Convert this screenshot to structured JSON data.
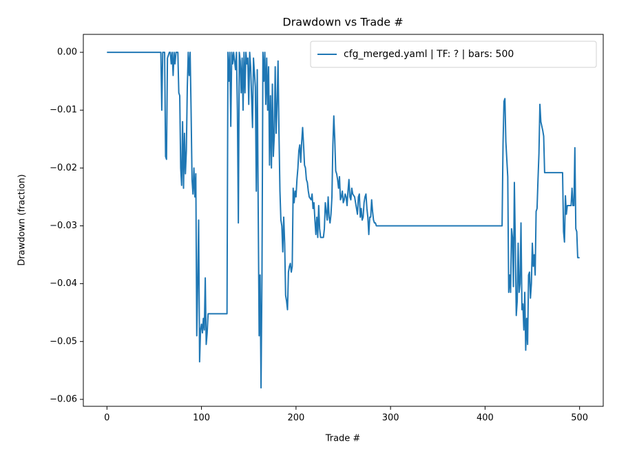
{
  "chart_data": {
    "type": "line",
    "title": "Drawdown vs Trade #",
    "x_label": "Trade #",
    "y_label": "Drawdown (fraction)",
    "xlim": [
      -25,
      525
    ],
    "ylim": [
      -0.0612,
      0.0031
    ],
    "xticks": [
      0,
      100,
      200,
      300,
      400,
      500
    ],
    "yticks": [
      {
        "value": 0,
        "label": "0.00"
      },
      {
        "value": -0.01,
        "label": "−0.01"
      },
      {
        "value": -0.02,
        "label": "−0.02"
      },
      {
        "value": -0.03,
        "label": "−0.03"
      },
      {
        "value": -0.04,
        "label": "−0.04"
      },
      {
        "value": -0.05,
        "label": "−0.05"
      },
      {
        "value": -0.06,
        "label": "−0.06"
      }
    ],
    "grid": false,
    "legend": "upper right",
    "x": [
      0,
      57,
      58,
      59,
      61,
      62,
      63,
      64,
      66,
      67,
      68,
      69,
      70,
      71,
      72,
      73,
      75,
      76,
      77,
      78,
      79,
      80,
      81,
      82,
      83,
      84,
      85,
      86,
      87,
      88,
      89,
      90,
      91,
      92,
      93,
      94,
      95,
      96,
      97,
      98,
      99,
      100,
      101,
      102,
      103,
      104,
      105,
      106,
      107,
      127,
      128,
      129,
      130,
      131,
      132,
      133,
      134,
      136,
      137,
      138,
      139,
      140,
      141,
      142,
      143,
      144,
      145,
      146,
      147,
      148,
      149,
      150,
      151,
      152,
      154,
      155,
      157,
      158,
      159,
      160,
      161,
      162,
      163,
      164,
      165,
      166,
      167,
      168,
      169,
      170,
      171,
      172,
      173,
      174,
      175,
      176,
      177,
      178,
      179,
      180,
      181,
      182,
      183,
      184,
      185,
      186,
      187,
      188,
      189,
      190,
      191,
      192,
      193,
      194,
      195,
      196,
      197,
      198,
      199,
      200,
      201,
      202,
      203,
      204,
      205,
      206,
      207,
      208,
      209,
      210,
      211,
      212,
      213,
      214,
      216,
      217,
      218,
      219,
      220,
      221,
      222,
      223,
      224,
      225,
      226,
      229,
      230,
      231,
      232,
      233,
      234,
      235,
      236,
      237,
      238,
      239,
      240,
      241,
      242,
      243,
      244,
      245,
      246,
      247,
      248,
      249,
      250,
      251,
      252,
      253,
      254,
      255,
      256,
      257,
      258,
      259,
      260,
      262,
      264,
      265,
      266,
      267,
      268,
      269,
      270,
      271,
      272,
      273,
      274,
      275,
      276,
      277,
      278,
      279,
      280,
      281,
      282,
      283,
      284,
      285,
      300,
      418,
      419,
      420,
      421,
      422,
      423,
      424,
      425,
      426,
      427,
      428,
      429,
      430,
      431,
      432,
      433,
      434,
      435,
      436,
      437,
      438,
      439,
      440,
      441,
      442,
      443,
      444,
      445,
      446,
      447,
      448,
      449,
      450,
      451,
      452,
      453,
      454,
      455,
      456,
      457,
      458,
      459,
      461,
      462,
      463,
      482,
      483,
      484,
      485,
      486,
      487,
      489,
      491,
      492,
      493,
      494,
      495,
      496,
      497,
      498,
      500
    ],
    "series": [
      {
        "name": "cfg_merged.yaml | TF: ? | bars: 500",
        "color": "#1f77b4",
        "values": [
          0,
          0,
          -0.01,
          0,
          0,
          -0.018,
          -0.0185,
          -0.001,
          0,
          0,
          -0.002,
          0,
          -0.004,
          0,
          -0.002,
          0,
          0,
          -0.007,
          -0.0075,
          -0.02,
          -0.023,
          -0.012,
          -0.0235,
          -0.014,
          -0.021,
          -0.017,
          -0.006,
          0,
          -0.004,
          0,
          -0.01,
          -0.022,
          -0.0245,
          -0.02,
          -0.025,
          -0.021,
          -0.049,
          -0.04,
          -0.029,
          -0.0535,
          -0.048,
          -0.047,
          -0.0485,
          -0.046,
          -0.048,
          -0.039,
          -0.0505,
          -0.0485,
          -0.0452,
          -0.0452,
          0,
          -0.005,
          0,
          -0.0128,
          0,
          -0.002,
          0,
          -0.003,
          0,
          -0.01,
          -0.0295,
          0,
          -0.0015,
          -0.007,
          -0.001,
          -0.01,
          0,
          -0.007,
          0,
          -0.002,
          -0.001,
          -0.009,
          0,
          -0.0025,
          -0.013,
          -0.001,
          -0.006,
          -0.024,
          -0.003,
          -0.027,
          -0.049,
          -0.0385,
          -0.058,
          -0.0385,
          0,
          -0.005,
          0,
          -0.009,
          -0.001,
          -0.01,
          -0.0025,
          -0.0195,
          -0.0075,
          -0.02,
          -0.0055,
          -0.018,
          -0.0145,
          -0.0025,
          -0.014,
          -0.009,
          -0.0015,
          -0.014,
          -0.024,
          -0.029,
          -0.03,
          -0.0345,
          -0.0285,
          -0.033,
          -0.042,
          -0.043,
          -0.0445,
          -0.038,
          -0.037,
          -0.0365,
          -0.038,
          -0.037,
          -0.0235,
          -0.026,
          -0.024,
          -0.025,
          -0.022,
          -0.02,
          -0.017,
          -0.016,
          -0.019,
          -0.0155,
          -0.013,
          -0.016,
          -0.0195,
          -0.02,
          -0.022,
          -0.0225,
          -0.024,
          -0.025,
          -0.0255,
          -0.0245,
          -0.027,
          -0.026,
          -0.029,
          -0.0315,
          -0.0285,
          -0.032,
          -0.0265,
          -0.0305,
          -0.032,
          -0.032,
          -0.0305,
          -0.026,
          -0.0275,
          -0.029,
          -0.025,
          -0.0285,
          -0.0295,
          -0.028,
          -0.025,
          -0.016,
          -0.011,
          -0.015,
          -0.0205,
          -0.021,
          -0.022,
          -0.0235,
          -0.0215,
          -0.0255,
          -0.025,
          -0.024,
          -0.026,
          -0.0255,
          -0.0245,
          -0.025,
          -0.0265,
          -0.024,
          -0.022,
          -0.025,
          -0.0255,
          -0.0235,
          -0.0245,
          -0.025,
          -0.027,
          -0.028,
          -0.025,
          -0.0245,
          -0.0285,
          -0.027,
          -0.029,
          -0.0285,
          -0.026,
          -0.025,
          -0.0245,
          -0.027,
          -0.0285,
          -0.0315,
          -0.0285,
          -0.0285,
          -0.0255,
          -0.0275,
          -0.029,
          -0.0295,
          -0.0295,
          -0.03,
          -0.03,
          -0.03,
          -0.016,
          -0.0085,
          -0.008,
          -0.0155,
          -0.0185,
          -0.0215,
          -0.0415,
          -0.0385,
          -0.0415,
          -0.0305,
          -0.032,
          -0.0405,
          -0.0225,
          -0.033,
          -0.0455,
          -0.043,
          -0.033,
          -0.0415,
          -0.04,
          -0.0295,
          -0.0445,
          -0.0435,
          -0.048,
          -0.0415,
          -0.0515,
          -0.046,
          -0.0505,
          -0.0385,
          -0.038,
          -0.0425,
          -0.04,
          -0.033,
          -0.037,
          -0.035,
          -0.0385,
          -0.0275,
          -0.027,
          -0.022,
          -0.0175,
          -0.009,
          -0.012,
          -0.0135,
          -0.0145,
          -0.0208,
          -0.0208,
          -0.031,
          -0.0328,
          -0.0248,
          -0.028,
          -0.0265,
          -0.0265,
          -0.0265,
          -0.0235,
          -0.0265,
          -0.0265,
          -0.0165,
          -0.0305,
          -0.031,
          -0.0355,
          -0.0355
        ]
      }
    ]
  }
}
